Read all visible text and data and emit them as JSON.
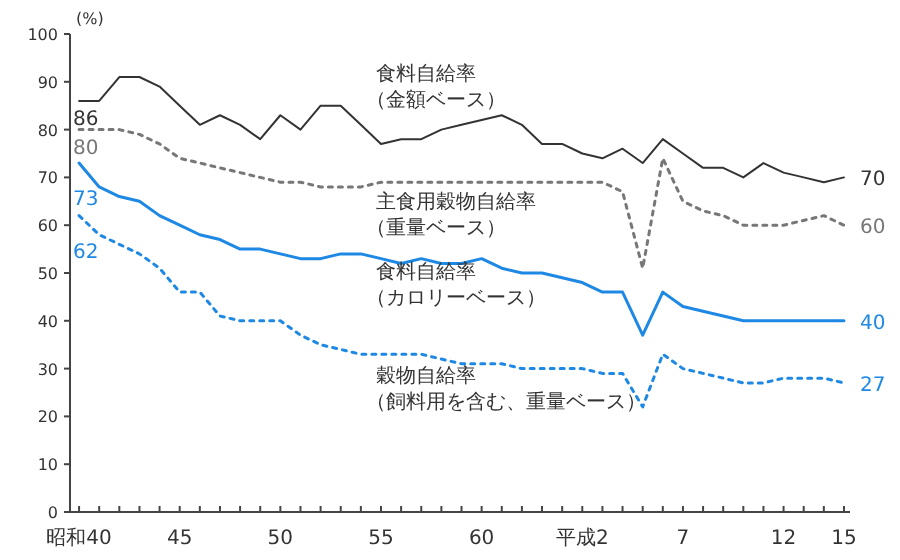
{
  "chart_data": {
    "type": "line",
    "ylabel": "(%)",
    "categories": [
      "昭和40",
      null,
      null,
      null,
      null,
      "45",
      null,
      null,
      null,
      null,
      "50",
      null,
      null,
      null,
      null,
      "55",
      null,
      null,
      null,
      null,
      "60",
      null,
      null,
      null,
      null,
      "平成2",
      null,
      null,
      null,
      null,
      "7",
      null,
      null,
      null,
      null,
      "12",
      null,
      null,
      "15"
    ],
    "ylim": [
      0,
      100
    ],
    "yticks": [
      0,
      10,
      20,
      30,
      40,
      50,
      60,
      70,
      80,
      90,
      100
    ],
    "series": [
      {
        "name": "食料自給率（金額ベース）",
        "color": "#333333",
        "line_style": "solid",
        "values": [
          86,
          86,
          91,
          91,
          89,
          85,
          81,
          83,
          81,
          78,
          83,
          80,
          85,
          85,
          81,
          77,
          78,
          78,
          80,
          81,
          82,
          83,
          81,
          77,
          77,
          75,
          74,
          76,
          73,
          78,
          75,
          72,
          72,
          70,
          73,
          71,
          70,
          69,
          70
        ],
        "value_labels": [
          "86",
          null,
          null,
          null,
          null,
          null,
          null,
          null,
          null,
          null,
          null,
          null,
          null,
          null,
          null,
          null,
          null,
          null,
          null,
          null,
          null,
          null,
          null,
          null,
          null,
          null,
          null,
          null,
          null,
          null,
          null,
          null,
          null,
          null,
          null,
          null,
          null,
          null,
          "70"
        ]
      },
      {
        "name": "主食用穀物自給率（重量ベース）",
        "color": "#777777",
        "line_style": "dotted",
        "values": [
          80,
          80,
          80,
          79,
          77,
          74,
          73,
          72,
          71,
          70,
          69,
          69,
          68,
          68,
          68,
          69,
          69,
          69,
          69,
          69,
          69,
          69,
          69,
          69,
          69,
          69,
          69,
          67,
          51,
          74,
          65,
          63,
          62,
          60,
          60,
          60,
          61,
          62,
          60
        ],
        "value_labels": [
          "80",
          null,
          null,
          null,
          null,
          null,
          null,
          null,
          null,
          null,
          null,
          null,
          null,
          null,
          null,
          null,
          null,
          null,
          null,
          null,
          null,
          null,
          null,
          null,
          null,
          null,
          null,
          null,
          null,
          null,
          null,
          null,
          null,
          null,
          null,
          null,
          null,
          null,
          "60"
        ]
      },
      {
        "name": "食料自給率（カロリーベース）",
        "color": "#1e88e5",
        "line_style": "solid",
        "values": [
          73,
          68,
          66,
          65,
          62,
          60,
          58,
          57,
          55,
          55,
          54,
          53,
          53,
          54,
          54,
          53,
          52,
          53,
          52,
          52,
          53,
          51,
          50,
          50,
          49,
          48,
          46,
          46,
          37,
          46,
          43,
          42,
          41,
          40,
          40,
          40,
          40,
          40,
          40
        ],
        "value_labels": [
          "73",
          null,
          null,
          null,
          null,
          null,
          null,
          null,
          null,
          null,
          null,
          null,
          null,
          null,
          null,
          null,
          null,
          null,
          null,
          null,
          null,
          null,
          null,
          null,
          null,
          null,
          null,
          null,
          null,
          null,
          null,
          null,
          null,
          null,
          null,
          null,
          null,
          null,
          "40"
        ]
      },
      {
        "name": "穀物自給率（飼料用を含む、重量ベース）",
        "color": "#1e88e5",
        "line_style": "dotted",
        "values": [
          62,
          58,
          56,
          54,
          51,
          46,
          46,
          41,
          40,
          40,
          40,
          37,
          35,
          34,
          33,
          33,
          33,
          33,
          32,
          31,
          31,
          31,
          30,
          30,
          30,
          30,
          29,
          29,
          22,
          33,
          30,
          29,
          28,
          27,
          27,
          28,
          28,
          28,
          27
        ],
        "value_labels": [
          "62",
          null,
          null,
          null,
          null,
          null,
          null,
          null,
          null,
          null,
          null,
          null,
          null,
          null,
          null,
          null,
          null,
          null,
          null,
          null,
          null,
          null,
          null,
          null,
          null,
          null,
          null,
          null,
          null,
          null,
          null,
          null,
          null,
          null,
          null,
          null,
          null,
          null,
          "27"
        ]
      }
    ]
  }
}
